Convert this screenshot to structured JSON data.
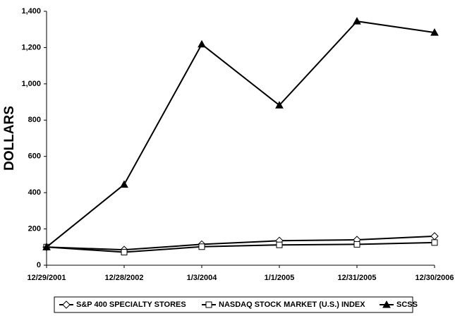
{
  "chart_data": {
    "type": "line",
    "y_label": "DOLLARS",
    "categories": [
      "12/29/2001",
      "12/28/2002",
      "1/3/2004",
      "1/1/2005",
      "12/31/2005",
      "12/30/2006"
    ],
    "series": [
      {
        "name": "S&P 400 SPECIALTY STORES",
        "color": "#000000",
        "marker": "diamond",
        "values": [
          100,
          85,
          115,
          135,
          140,
          160
        ]
      },
      {
        "name": "NASDAQ STOCK MARKET (U.S.) INDEX",
        "color": "#000000",
        "marker": "square",
        "values": [
          100,
          72,
          102,
          112,
          115,
          125
        ]
      },
      {
        "name": "SCSS",
        "color": "#000000",
        "marker": "triangle",
        "values": [
          100,
          445,
          1218,
          882,
          1345,
          1283
        ]
      }
    ],
    "ylim": [
      0,
      1400
    ],
    "yticks": [
      0,
      200,
      400,
      600,
      800,
      {
        "value": 1000,
        "label": "1,000"
      },
      {
        "value": 1200,
        "label": "1,200"
      },
      {
        "value": 1400,
        "label": "1,400"
      }
    ],
    "grid": false,
    "legend": "bottom"
  }
}
